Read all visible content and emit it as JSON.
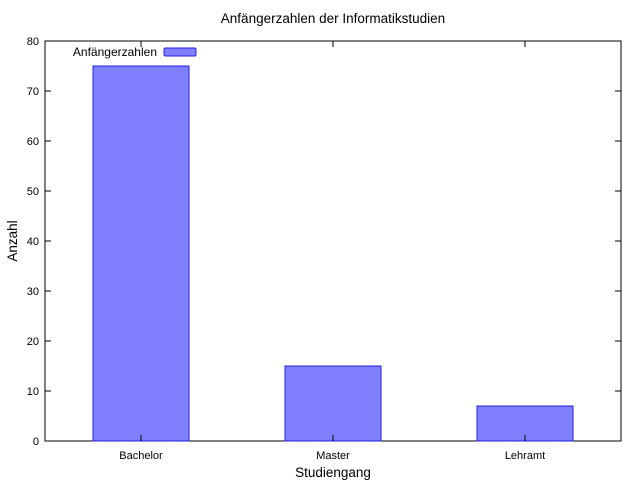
{
  "chart_data": {
    "type": "bar",
    "title": "Anfängerzahlen der Informatikstudien",
    "xlabel": "Studiengang",
    "ylabel": "Anzahl",
    "categories": [
      "Bachelor",
      "Master",
      "Lehramt"
    ],
    "series": [
      {
        "name": "Anfängerzahlen",
        "values": [
          75,
          15,
          7
        ]
      }
    ],
    "ylim": [
      0,
      80
    ],
    "yticks": [
      0,
      10,
      20,
      30,
      40,
      50,
      60,
      70,
      80
    ],
    "grid": false,
    "legend_position": "top-left",
    "colors": {
      "bar_fill": "#8080ff",
      "bar_stroke": "#2020e0",
      "axis": "#000000"
    }
  }
}
